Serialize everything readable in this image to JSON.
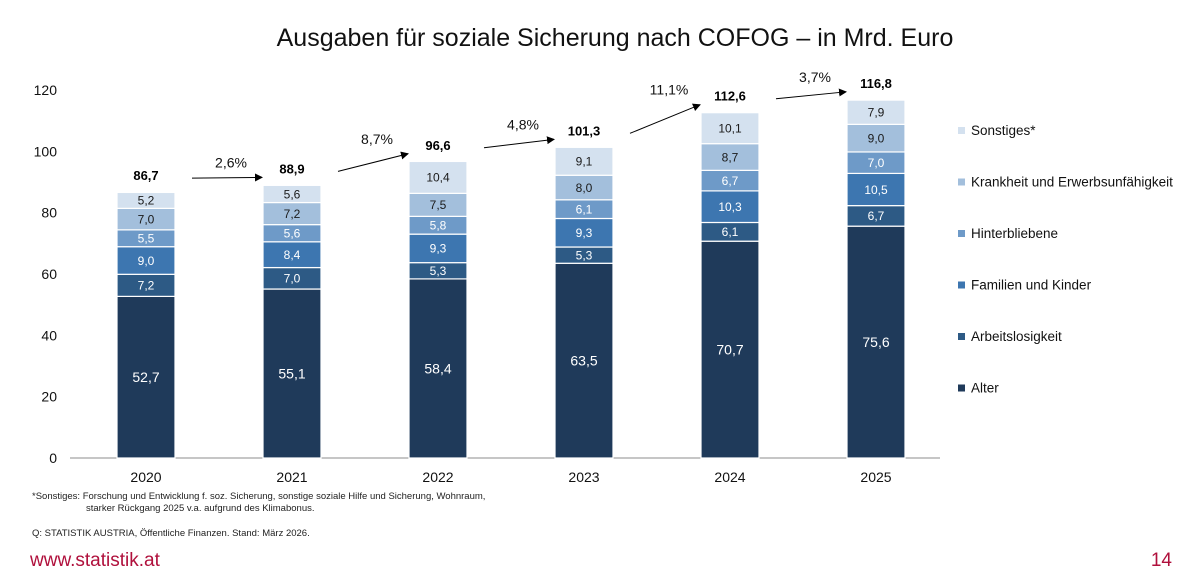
{
  "chart_data": {
    "type": "bar",
    "stacked": true,
    "title": "Ausgaben für soziale Sicherung nach COFOG – in Mrd. Euro",
    "xlabel": "",
    "ylabel": "",
    "ylim": [
      0,
      120
    ],
    "yticks": [
      "0",
      "20",
      "40",
      "60",
      "80",
      "100",
      "120"
    ],
    "categories": [
      "2020",
      "2021",
      "2022",
      "2023",
      "2024",
      "2025"
    ],
    "series": [
      {
        "name": "Alter",
        "color": "#1f3a5a",
        "values": [
          52.7,
          55.1,
          58.4,
          63.5,
          70.7,
          75.6
        ],
        "labels": [
          "52,7",
          "55,1",
          "58,4",
          "63,5",
          "70,7",
          "75,6"
        ]
      },
      {
        "name": "Arbeitslosigkeit",
        "color": "#2d5a85",
        "values": [
          7.2,
          7.0,
          5.3,
          5.3,
          6.1,
          6.7
        ],
        "labels": [
          "7,2",
          "7,0",
          "5,3",
          "5,3",
          "6,1",
          "6,7"
        ]
      },
      {
        "name": "Familien und Kinder",
        "color": "#3d76b0",
        "values": [
          9.0,
          8.4,
          9.3,
          9.3,
          10.3,
          10.5
        ],
        "labels": [
          "9,0",
          "8,4",
          "9,3",
          "9,3",
          "10,3",
          "10,5"
        ]
      },
      {
        "name": "Hinterbliebene",
        "color": "#6e9ac8",
        "values": [
          5.5,
          5.6,
          5.8,
          6.1,
          6.7,
          7.0
        ],
        "labels": [
          "5,5",
          "5,6",
          "5,8",
          "6,1",
          "6,7",
          "7,0"
        ]
      },
      {
        "name": "Krankheit und Erwerbsunfähigkeit",
        "color": "#a3bfdc",
        "values": [
          7.0,
          7.2,
          7.5,
          8.0,
          8.7,
          9.0
        ],
        "labels": [
          "7,0",
          "7,2",
          "7,5",
          "8,0",
          "8,7",
          "9,0"
        ]
      },
      {
        "name": "Sonstiges*",
        "color": "#d4e1ef",
        "values": [
          5.2,
          5.6,
          10.4,
          9.1,
          10.1,
          7.9
        ],
        "labels": [
          "5,2",
          "5,6",
          "10,4",
          "9,1",
          "10,1",
          "7,9"
        ]
      }
    ],
    "totals": [
      86.7,
      88.9,
      96.6,
      101.3,
      112.6,
      116.8
    ],
    "total_labels": [
      "86,7",
      "88,9",
      "96,6",
      "101,3",
      "112,6",
      "116,8"
    ],
    "growth_labels": [
      "2,6%",
      "8,7%",
      "4,8%",
      "11,1%",
      "3,7%"
    ],
    "legend_position": "right"
  },
  "footnote_line1": "*Sonstiges: Forschung und Entwicklung f. soz. Sicherung, sonstige soziale Hilfe und Sicherung, Wohnraum,",
  "footnote_line2": "starker Rückgang 2025 v.a. aufgrund des Klimabonus.",
  "source": "Q: STATISTIK AUSTRIA, Öffentliche Finanzen. Stand: März 2026.",
  "website": "www.statistik.at",
  "page_number": "14"
}
